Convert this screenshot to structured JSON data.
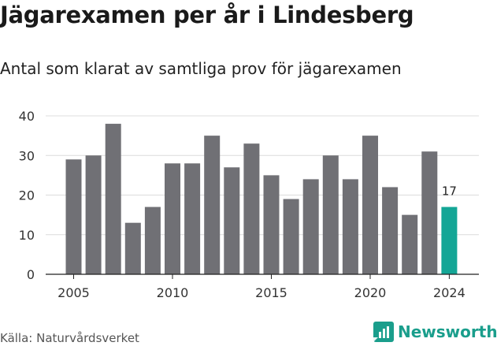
{
  "header": {
    "title": "Jägarexamen per år i Lindesberg",
    "subtitle": "Antal som klarat av samtliga prov för jägarexamen"
  },
  "footer": {
    "source": "Källa: Naturvårdsverket",
    "brand": "Newsworthy"
  },
  "colors": {
    "bar": "#707075",
    "highlight": "#14a696",
    "grid": "#dcdcdc",
    "brand": "#1a9e8c"
  },
  "chart_data": {
    "type": "bar",
    "title": "Jägarexamen per år i Lindesberg",
    "subtitle": "Antal som klarat av samtliga prov för jägarexamen",
    "categories": [
      2005,
      2006,
      2007,
      2008,
      2009,
      2010,
      2011,
      2012,
      2013,
      2014,
      2015,
      2016,
      2017,
      2018,
      2019,
      2020,
      2021,
      2022,
      2023,
      2024
    ],
    "values": [
      29,
      30,
      38,
      13,
      17,
      28,
      28,
      35,
      27,
      33,
      25,
      19,
      24,
      30,
      24,
      35,
      22,
      15,
      31,
      17
    ],
    "highlight_category": 2024,
    "highlight_label": "17",
    "ylim": [
      0,
      40
    ],
    "yticks": [
      0,
      10,
      20,
      30,
      40
    ],
    "xticks": [
      2005,
      2010,
      2015,
      2020,
      2024
    ],
    "grid": true,
    "legend": "none"
  }
}
